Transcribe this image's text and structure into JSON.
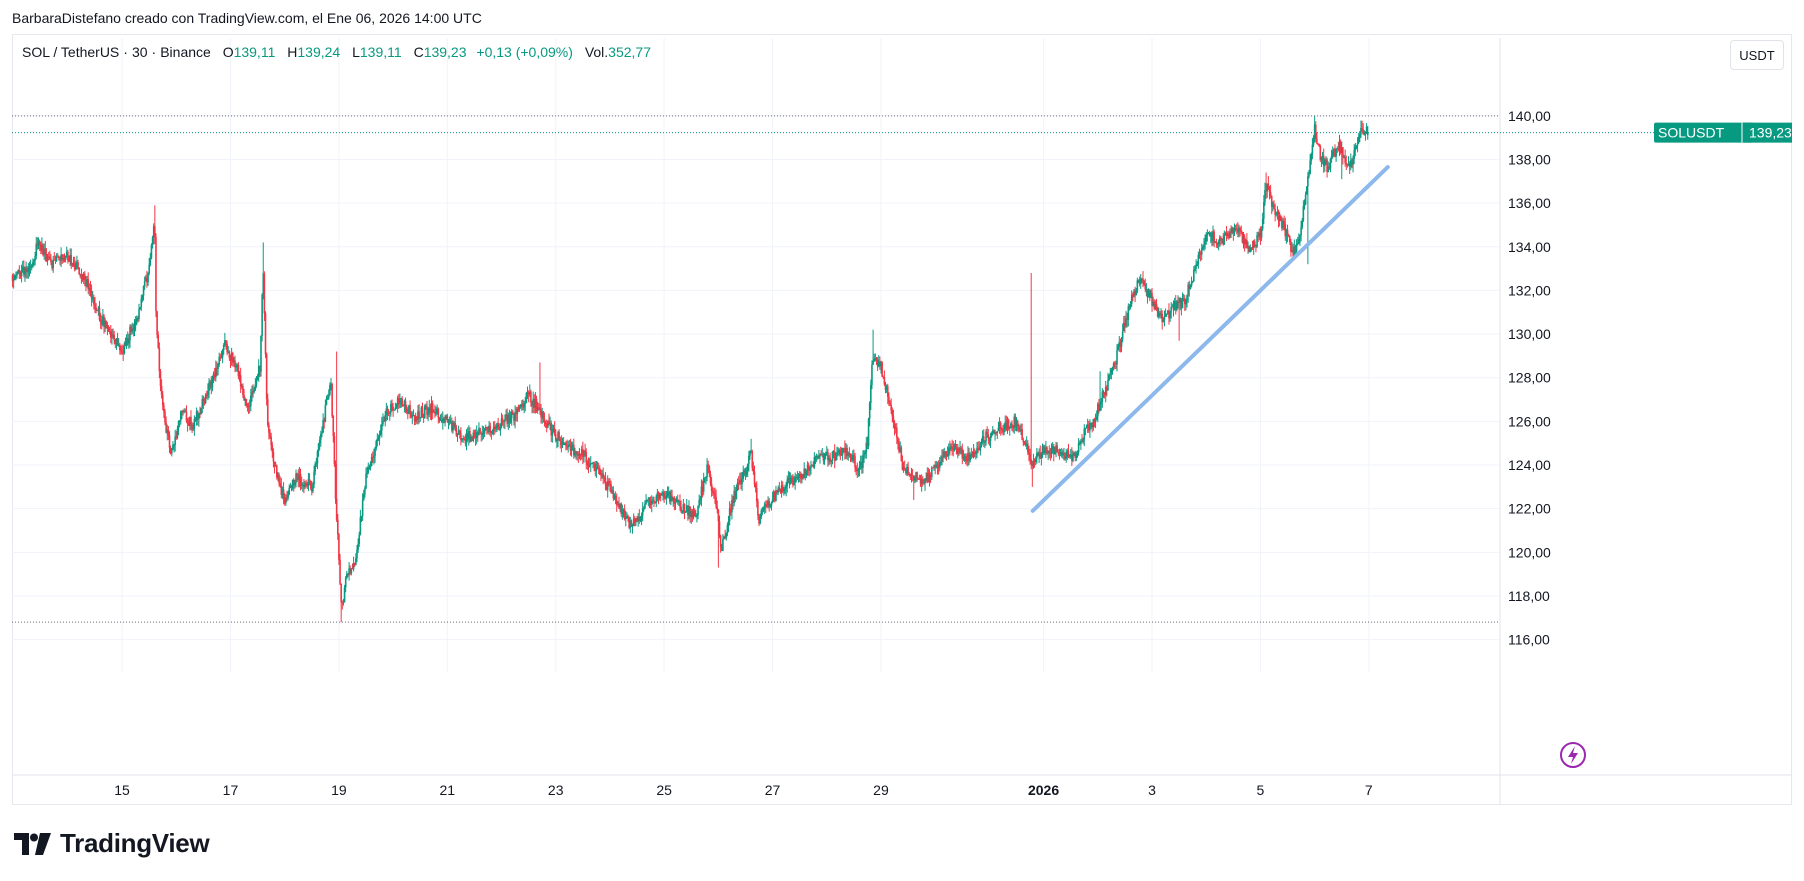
{
  "caption": "BarbaraDistefano creado con TradingView.com, el Ene 06, 2026 14:00 UTC",
  "legend": {
    "symbol": "SOL / TetherUS",
    "interval": "30",
    "exchange": "Binance",
    "open_label": "O",
    "open": "139,11",
    "high_label": "H",
    "high": "139,24",
    "low_label": "L",
    "low": "139,11",
    "close_label": "C",
    "close": "139,23",
    "change": "+0,13 (+0,09%)",
    "volume_label": "Vol.",
    "volume": "352,77"
  },
  "currency_button": "USDT",
  "price_tag": {
    "symbol": "SOLUSDT",
    "value": "139,23"
  },
  "brand": {
    "name": "TradingView",
    "logo_icon": "tradingview-logo-icon"
  },
  "colors": {
    "up": "#089981",
    "down": "#f23645",
    "trendline": "#8db8ec",
    "tag_bg": "#089981",
    "alert_icon": "#9c27b0"
  },
  "chart_data": {
    "type": "candlestick",
    "y_tick_labels": [
      "140,00",
      "138,00",
      "136,00",
      "134,00",
      "132,00",
      "130,00",
      "128,00",
      "126,00",
      "124,00",
      "122,00",
      "120,00",
      "118,00",
      "116,00"
    ],
    "y_ticks": [
      140,
      138,
      136,
      134,
      132,
      130,
      128,
      126,
      124,
      122,
      120,
      118,
      116
    ],
    "ylim": [
      114.7,
      142.1
    ],
    "x_tick_labels": [
      "15",
      "17",
      "19",
      "21",
      "23",
      "25",
      "27",
      "29",
      "2026",
      "3",
      "5",
      "7"
    ],
    "x_ticks_day": [
      15,
      17,
      19,
      21,
      23,
      25,
      27,
      29,
      32,
      34,
      36,
      38
    ],
    "x_unit": "day of December 2025 (32 = Jan 1, 2026)",
    "xlim": [
      12.97,
      40.42
    ],
    "grid": true,
    "last_price": 139.23,
    "dotted_levels": [
      140.0,
      139.23,
      116.8
    ],
    "trendline": {
      "x1": 31.8,
      "y1": 121.9,
      "x2": 38.35,
      "y2": 137.65
    },
    "path": [
      [
        12.98,
        132.7
      ],
      [
        13.3,
        133.0
      ],
      [
        13.45,
        134.2
      ],
      [
        13.7,
        133.2
      ],
      [
        14.0,
        133.6
      ],
      [
        14.3,
        132.6
      ],
      [
        14.5,
        131.4
      ],
      [
        14.75,
        130.0
      ],
      [
        15.0,
        129.2
      ],
      [
        15.3,
        131.0
      ],
      [
        15.5,
        133.0
      ],
      [
        15.6,
        135.4
      ],
      [
        15.63,
        130.5
      ],
      [
        15.75,
        126.5
      ],
      [
        15.9,
        124.5
      ],
      [
        16.1,
        126.5
      ],
      [
        16.3,
        125.8
      ],
      [
        16.6,
        127.5
      ],
      [
        16.9,
        129.5
      ],
      [
        17.1,
        128.6
      ],
      [
        17.3,
        126.5
      ],
      [
        17.55,
        128.5
      ],
      [
        17.6,
        133.5
      ],
      [
        17.68,
        126.0
      ],
      [
        17.85,
        123.5
      ],
      [
        18.0,
        122.3
      ],
      [
        18.2,
        123.5
      ],
      [
        18.5,
        123.0
      ],
      [
        18.75,
        126.5
      ],
      [
        18.85,
        128.0
      ],
      [
        18.95,
        122.0
      ],
      [
        19.05,
        117.2
      ],
      [
        19.15,
        119.0
      ],
      [
        19.3,
        119.5
      ],
      [
        19.5,
        123.5
      ],
      [
        19.7,
        125.0
      ],
      [
        19.9,
        126.5
      ],
      [
        20.1,
        127.0
      ],
      [
        20.4,
        126.2
      ],
      [
        20.7,
        126.6
      ],
      [
        21.0,
        126.0
      ],
      [
        21.3,
        125.2
      ],
      [
        21.6,
        125.5
      ],
      [
        21.9,
        125.8
      ],
      [
        22.2,
        126.2
      ],
      [
        22.5,
        127.2
      ],
      [
        22.7,
        126.5
      ],
      [
        22.95,
        125.5
      ],
      [
        23.2,
        124.8
      ],
      [
        23.5,
        124.5
      ],
      [
        23.8,
        123.6
      ],
      [
        24.1,
        122.5
      ],
      [
        24.4,
        121.2
      ],
      [
        24.7,
        122.2
      ],
      [
        25.0,
        122.7
      ],
      [
        25.3,
        122.0
      ],
      [
        25.6,
        121.8
      ],
      [
        25.8,
        124.0
      ],
      [
        26.0,
        121.5
      ],
      [
        26.05,
        120.0
      ],
      [
        26.25,
        122.3
      ],
      [
        26.5,
        123.8
      ],
      [
        26.6,
        124.6
      ],
      [
        26.75,
        121.5
      ],
      [
        26.9,
        122.2
      ],
      [
        27.2,
        123.0
      ],
      [
        27.5,
        123.5
      ],
      [
        27.8,
        124.2
      ],
      [
        28.1,
        124.4
      ],
      [
        28.4,
        124.7
      ],
      [
        28.6,
        123.7
      ],
      [
        28.75,
        125.0
      ],
      [
        28.85,
        129.0
      ],
      [
        29.0,
        128.5
      ],
      [
        29.2,
        126.5
      ],
      [
        29.4,
        124.0
      ],
      [
        29.6,
        123.5
      ],
      [
        29.8,
        123.2
      ],
      [
        30.0,
        123.8
      ],
      [
        30.3,
        124.8
      ],
      [
        30.6,
        124.3
      ],
      [
        30.9,
        125.2
      ],
      [
        31.2,
        125.7
      ],
      [
        31.5,
        126.0
      ],
      [
        31.7,
        124.8
      ],
      [
        31.8,
        124.0
      ],
      [
        32.0,
        124.8
      ],
      [
        32.3,
        124.6
      ],
      [
        32.55,
        124.4
      ],
      [
        32.7,
        125.2
      ],
      [
        32.9,
        126.0
      ],
      [
        33.1,
        127.2
      ],
      [
        33.3,
        128.5
      ],
      [
        33.45,
        130.0
      ],
      [
        33.6,
        131.5
      ],
      [
        33.8,
        132.6
      ],
      [
        34.0,
        131.5
      ],
      [
        34.2,
        130.5
      ],
      [
        34.4,
        131.2
      ],
      [
        34.6,
        131.5
      ],
      [
        34.8,
        133.0
      ],
      [
        35.0,
        134.5
      ],
      [
        35.3,
        134.3
      ],
      [
        35.6,
        134.8
      ],
      [
        35.8,
        133.8
      ],
      [
        36.0,
        134.5
      ],
      [
        36.1,
        136.8
      ],
      [
        36.3,
        135.5
      ],
      [
        36.5,
        134.5
      ],
      [
        36.6,
        133.5
      ],
      [
        36.75,
        135.0
      ],
      [
        36.9,
        137.5
      ],
      [
        37.0,
        139.4
      ],
      [
        37.1,
        138.2
      ],
      [
        37.25,
        137.6
      ],
      [
        37.45,
        138.8
      ],
      [
        37.55,
        138.0
      ],
      [
        37.7,
        137.9
      ],
      [
        37.85,
        139.5
      ],
      [
        37.98,
        139.2
      ]
    ],
    "spikes": [
      [
        15.6,
        135.9
      ],
      [
        17.6,
        134.2
      ],
      [
        18.95,
        129.2
      ],
      [
        19.05,
        116.8
      ],
      [
        22.7,
        128.7
      ],
      [
        26.0,
        119.3
      ],
      [
        26.6,
        125.2
      ],
      [
        28.85,
        130.2
      ],
      [
        29.6,
        122.4
      ],
      [
        31.78,
        132.8
      ],
      [
        31.79,
        123.0
      ],
      [
        33.05,
        128.3
      ],
      [
        33.15,
        127.1
      ],
      [
        34.5,
        129.7
      ],
      [
        36.1,
        137.4
      ],
      [
        36.88,
        133.2
      ],
      [
        37.0,
        140.0
      ],
      [
        37.5,
        137.1
      ]
    ]
  }
}
